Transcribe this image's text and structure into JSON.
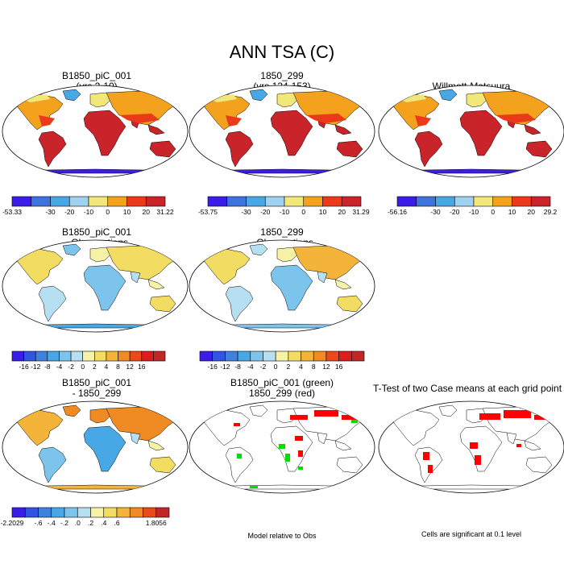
{
  "figure_title": "ANN TSA (C)",
  "panels": [
    {
      "title": "B1850_piC_001",
      "subtitle": "(yrs 2-10)"
    },
    {
      "title": "1850_299",
      "subtitle": "(yrs 134-153)"
    },
    {
      "title": "Willmott-Matsuura",
      "subtitle": ""
    },
    {
      "title": "B1850_piC_001",
      "subtitle": "- Observations"
    },
    {
      "title": "1850_299",
      "subtitle": "- Observations"
    },
    {
      "title": "B1850_piC_001",
      "subtitle": "- 1850_299"
    },
    {
      "title": "B1850_piC_001 (green)",
      "subtitle": "1850_299 (red)"
    },
    {
      "title": "T-Test of two Case means at each grid point",
      "subtitle": ""
    }
  ],
  "notes": {
    "model_relative": "Model relative to Obs",
    "significance": "Cells are significant at 0.1 level"
  },
  "colorbars": [
    {
      "colors": [
        "#3a1ee8",
        "#3f73dc",
        "#48a8e6",
        "#9ed2f0",
        "#f2e87a",
        "#f4a21e",
        "#ea3a1a",
        "#c8242a"
      ],
      "labels": [
        "-53.33",
        "",
        "-30",
        "-20",
        "-10",
        "0",
        "10",
        "20",
        "31.22"
      ]
    },
    {
      "colors": [
        "#3a1ee8",
        "#3f73dc",
        "#48a8e6",
        "#9ed2f0",
        "#f2e87a",
        "#f4a21e",
        "#ea3a1a",
        "#c8242a"
      ],
      "labels": [
        "-53.75",
        "",
        "-30",
        "-20",
        "-10",
        "0",
        "10",
        "20",
        "31.29"
      ]
    },
    {
      "colors": [
        "#3a1ee8",
        "#3f73dc",
        "#48a8e6",
        "#9ed2f0",
        "#f2e87a",
        "#f4a21e",
        "#ea3a1a",
        "#c8242a"
      ],
      "labels": [
        "-56.16",
        "",
        "-30",
        "-20",
        "-10",
        "0",
        "10",
        "20",
        "29.2"
      ]
    },
    {
      "colors": [
        "#3a1ee8",
        "#3155e0",
        "#3e82de",
        "#48a8e6",
        "#7cc4ec",
        "#b6dff2",
        "#f6f2a6",
        "#f2dc62",
        "#f4b43a",
        "#f08a22",
        "#ea4a1a",
        "#d81e1e",
        "#c02828"
      ],
      "labels": [
        "",
        "-16",
        "-12",
        "-8",
        "-4",
        "-2",
        "0",
        "2",
        "4",
        "8",
        "12",
        "16",
        ""
      ]
    },
    {
      "colors": [
        "#3a1ee8",
        "#3155e0",
        "#3e82de",
        "#48a8e6",
        "#7cc4ec",
        "#b6dff2",
        "#f6f2a6",
        "#f2dc62",
        "#f4b43a",
        "#f08a22",
        "#ea4a1a",
        "#d81e1e",
        "#c02828"
      ],
      "labels": [
        "",
        "-16",
        "-12",
        "-8",
        "-4",
        "-2",
        "0",
        "2",
        "4",
        "8",
        "12",
        "16",
        ""
      ]
    },
    {
      "colors": [
        "#3a1ee8",
        "#3155e0",
        "#3e82de",
        "#48a8e6",
        "#7cc4ec",
        "#b6dff2",
        "#f6f2a6",
        "#f2dc62",
        "#f4b43a",
        "#f08a22",
        "#ea4a1a",
        "#c02828"
      ],
      "labels": [
        "-2.2029",
        "",
        "-.6",
        "-.4",
        "-.2",
        ".0",
        ".2",
        ".4",
        ".6",
        "",
        "",
        "1.8056"
      ]
    }
  ],
  "chart_data": {
    "type": "heatmap",
    "title": "ANN TSA (C)",
    "description_units": "degrees C, annual mean surface air temperature on world maps",
    "map_fills": {
      "mean_fields": "temperature gradient: hot tropics (red), cold poles (blue)",
      "difference_fields": "mixed blue/yellow anomalies",
      "model_relative": "#ff0000 and #00dd00 significance cells",
      "ttest": "#ff0000 cells"
    }
  }
}
